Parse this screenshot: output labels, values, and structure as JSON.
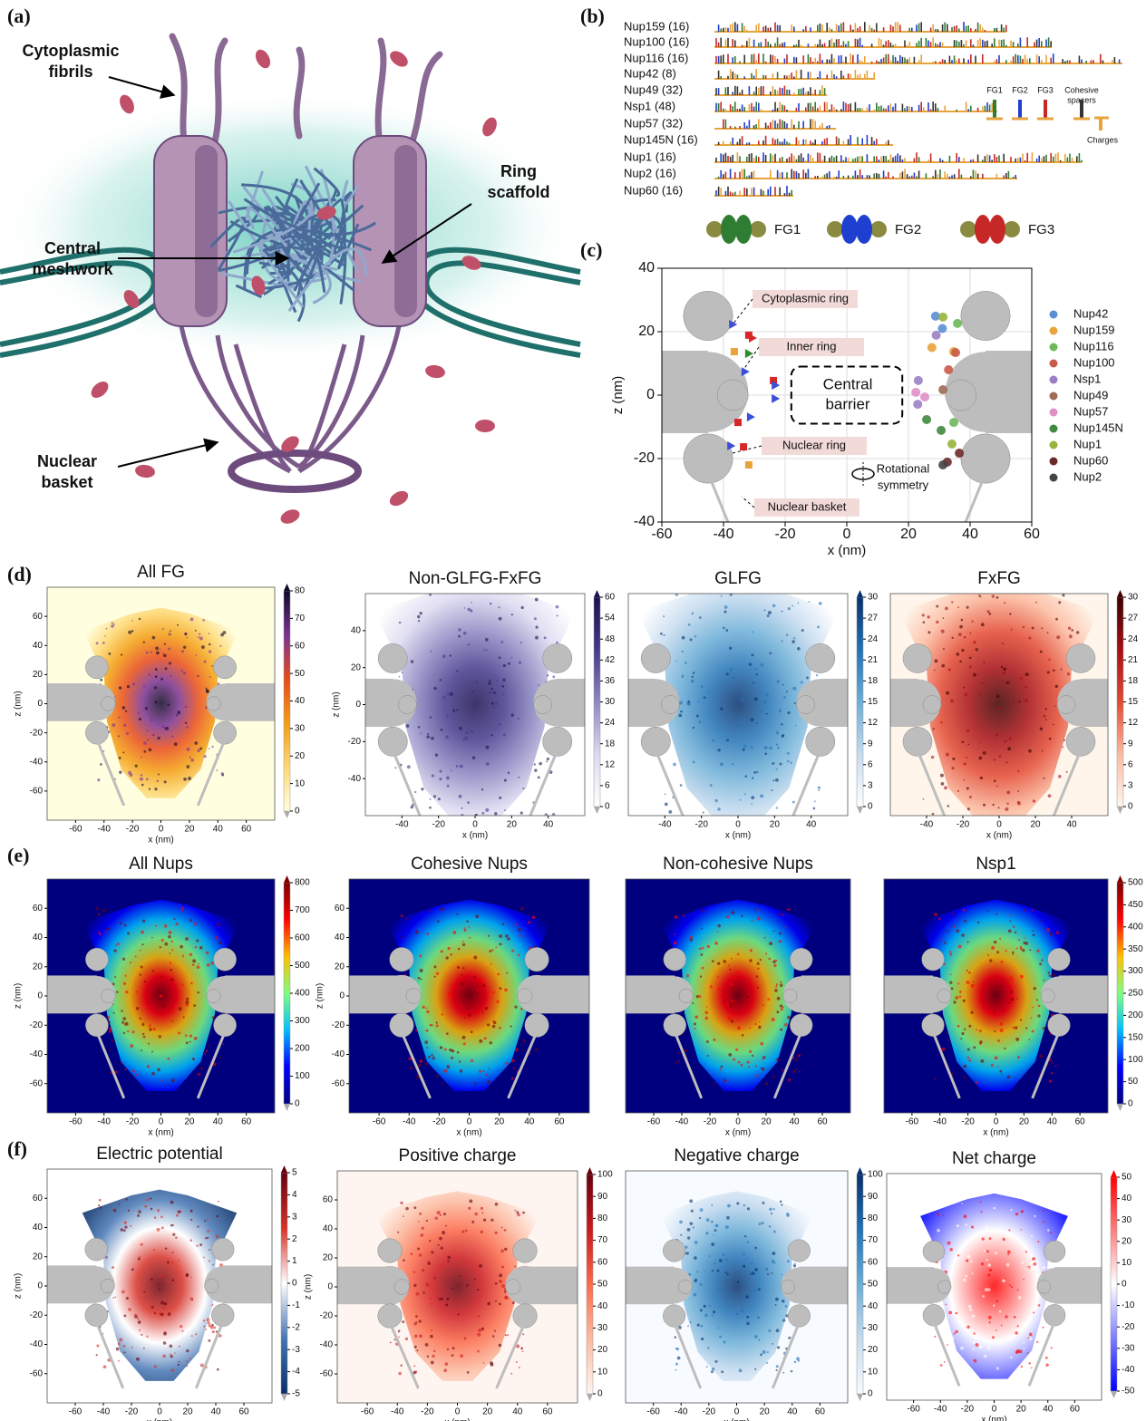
{
  "panels": {
    "a": {
      "label": "(a)",
      "annotations": [
        [
          "Cytoplasmic",
          "fibrils"
        ],
        [
          "Ring",
          "scaffold"
        ],
        [
          "Central",
          "meshwork"
        ],
        [
          "Nuclear",
          "basket"
        ]
      ]
    },
    "b": {
      "label": "(b)",
      "nups": [
        "Nup159 (16)",
        "Nup100 (16)",
        "Nup116 (16)",
        "Nup42 (8)",
        "Nup49 (32)",
        "Nsp1 (48)",
        "Nup57 (32)",
        "Nup145N (16)",
        "Nup1 (16)",
        "Nup2 (16)",
        "Nup60 (16)"
      ],
      "legend": [
        [
          "FG1"
        ],
        [
          "FG2"
        ],
        [
          "FG3"
        ],
        [
          "Cohesive",
          "spacers"
        ],
        [
          "Charges"
        ]
      ],
      "colors": [
        "#2e7d32",
        "#1f3fd1",
        "#c62828",
        "#333333",
        "#e8a33b"
      ],
      "motifs": [
        "FG1",
        "FG2",
        "FG3"
      ]
    },
    "c": {
      "label": "(c)",
      "chart": {
        "type": "scatter",
        "xlabel": "x (nm)",
        "ylabel": "z (nm)",
        "xlim": [
          -60,
          60
        ],
        "ylim": [
          -40,
          40
        ],
        "xticks": [
          -60,
          -40,
          -20,
          0,
          20,
          40,
          60
        ],
        "yticks": [
          -40,
          -20,
          0,
          20,
          40
        ],
        "grid": true,
        "annotations": [
          [
            "Cytoplasmic ring"
          ],
          [
            "Inner ring"
          ],
          [
            "Central",
            "barrier"
          ],
          [
            "Nuclear ring"
          ],
          [
            "Nuclear basket"
          ],
          [
            "Rotational",
            "symmetry"
          ]
        ],
        "series": [
          {
            "name": "Nup42",
            "color": "#5a8fd6",
            "x": [
              28.8,
              31
            ],
            "y": [
              24.9,
              21
            ]
          },
          {
            "name": "Nup159",
            "color": "#e8a33b",
            "x": [
              27.6,
              34.7
            ],
            "y": [
              15,
              13.7
            ]
          },
          {
            "name": "Nup116",
            "color": "#6cb85a",
            "x": [
              35.9,
              34.7
            ],
            "y": [
              22.6,
              -8.6
            ]
          },
          {
            "name": "Nup100",
            "color": "#c85a4a",
            "x": [
              35.3,
              33
            ],
            "y": [
              13.4,
              8
            ]
          },
          {
            "name": "Nsp1",
            "color": "#9b7fc5",
            "x": [
              23.2,
              23,
              29
            ],
            "y": [
              4.6,
              -2.9,
              18.9
            ]
          },
          {
            "name": "Nup49",
            "color": "#9e6b55",
            "x": [
              31.2
            ],
            "y": [
              1.7
            ]
          },
          {
            "name": "Nup57",
            "color": "#e08fc8",
            "x": [
              22.4,
              25.3
            ],
            "y": [
              0.9,
              -0.6
            ]
          },
          {
            "name": "Nup145N",
            "color": "#3f8a3f",
            "x": [
              30.6,
              25.9
            ],
            "y": [
              -11.1,
              -7.7
            ]
          },
          {
            "name": "Nup1",
            "color": "#99b33c",
            "x": [
              31.2,
              34.1
            ],
            "y": [
              24.6,
              -15.4
            ]
          },
          {
            "name": "Nup60",
            "color": "#6b2a2a",
            "x": [
              36.5,
              32.6
            ],
            "y": [
              -18.3,
              -21.1
            ]
          },
          {
            "name": "Nup2",
            "color": "#444444",
            "x": [
              31.2
            ],
            "y": [
              -22
            ]
          }
        ],
        "anchors": [
          {
            "marker": "square",
            "color": "#d62728",
            "x": [
              -31.8,
              -23.8,
              -35.3,
              -33.5
            ],
            "y": [
              18.9,
              4.6,
              -8.6,
              -16.3
            ]
          },
          {
            "marker": "square",
            "color": "#e8a33b",
            "x": [
              -36.5,
              -31.8
            ],
            "y": [
              13.7,
              -22
            ]
          },
          {
            "marker": "triangle",
            "color": "#3b4fd8",
            "x": [
              -37,
              -33,
              -23.2,
              -23.2,
              -31.2,
              -37.6
            ],
            "y": [
              22.3,
              7.4,
              3.1,
              -1.1,
              -6.9,
              -16
            ]
          },
          {
            "marker": "triangle",
            "color": "#d62728",
            "x": [
              -30.6
            ],
            "y": [
              18
            ]
          },
          {
            "marker": "triangle",
            "color": "#2e8b2e",
            "x": [
              -31.8
            ],
            "y": [
              13.1
            ]
          }
        ]
      }
    },
    "d": {
      "label": "(d)",
      "heatmaps": [
        {
          "title": "All FG",
          "xlabel": "x (nm)",
          "ylabel": "z (nm)",
          "xlim": [
            -80,
            80
          ],
          "ylim": [
            -80,
            80
          ],
          "xticks": [
            -60,
            -40,
            -20,
            0,
            20,
            40,
            60
          ],
          "yticks": [
            -60,
            -40,
            -20,
            0,
            20,
            40,
            60
          ],
          "clim": [
            0,
            80
          ],
          "cticks": [
            0,
            10,
            20,
            30,
            40,
            50,
            60,
            70,
            80
          ],
          "colormap": [
            "#ffffe0",
            "#fed976",
            "#f39c12",
            "#e84a1a",
            "#7b3294",
            "#10082a"
          ]
        },
        {
          "title": "Non-GLFG-FxFG",
          "xlabel": "x (nm)",
          "ylabel": "z (nm)",
          "xlim": [
            -60,
            60
          ],
          "ylim": [
            -60,
            60
          ],
          "xticks": [
            -40,
            -20,
            0,
            20,
            40
          ],
          "yticks": [
            -40,
            -20,
            0,
            20,
            40
          ],
          "clim": [
            0,
            60
          ],
          "cticks": [
            0,
            6,
            12,
            18,
            24,
            30,
            36,
            42,
            48,
            54,
            60
          ],
          "colormap": [
            "#ffffff",
            "#dcdaf0",
            "#8d88c2",
            "#433a8b",
            "#1d1050"
          ]
        },
        {
          "title": "GLFG",
          "xlabel": "x (nm)",
          "xlim": [
            -60,
            60
          ],
          "ylim": [
            -60,
            60
          ],
          "xticks": [
            -40,
            -20,
            0,
            20,
            40
          ],
          "clim": [
            0,
            30
          ],
          "cticks": [
            0,
            3,
            6,
            9,
            12,
            15,
            18,
            21,
            24,
            27,
            30
          ],
          "colormap": [
            "#ffffff",
            "#c6dbef",
            "#6baed6",
            "#2171b5",
            "#08306b"
          ]
        },
        {
          "title": "FxFG",
          "xlabel": "x (nm)",
          "xlim": [
            -60,
            60
          ],
          "ylim": [
            -60,
            60
          ],
          "xticks": [
            -40,
            -20,
            0,
            20,
            40
          ],
          "clim": [
            0,
            30
          ],
          "cticks": [
            0,
            3,
            6,
            9,
            12,
            15,
            18,
            21,
            24,
            27,
            30
          ],
          "colormap": [
            "#fff5eb",
            "#fcbba1",
            "#e34a33",
            "#a50f15",
            "#3d0000"
          ]
        }
      ]
    },
    "e": {
      "label": "(e)",
      "heatmaps": [
        {
          "title": "All Nups",
          "xlabel": "x (nm)",
          "ylabel": "z (nm)",
          "xlim": [
            -80,
            80
          ],
          "ylim": [
            -80,
            80
          ],
          "xticks": [
            -60,
            -40,
            -20,
            0,
            20,
            40,
            60
          ],
          "yticks": [
            -60,
            -40,
            -20,
            0,
            20,
            40,
            60
          ],
          "clim": [
            0,
            800
          ],
          "cticks": [
            0,
            100,
            200,
            300,
            400,
            500,
            600,
            700,
            800
          ],
          "colormap": [
            "#00007f",
            "#0000ff",
            "#00bfff",
            "#7fff7f",
            "#ffbf00",
            "#ff0000",
            "#7f0000"
          ]
        },
        {
          "title": "Cohesive Nups",
          "xlabel": "x (nm)",
          "ylabel": "z (nm)",
          "xlim": [
            -80,
            80
          ],
          "ylim": [
            -80,
            80
          ],
          "xticks": [
            -60,
            -40,
            -20,
            0,
            20,
            40,
            60
          ],
          "yticks": [
            -60,
            -40,
            -20,
            0,
            20,
            40,
            60
          ],
          "colormap": [
            "#00007f",
            "#0000ff",
            "#00bfff",
            "#7fff7f",
            "#ffbf00",
            "#ff0000",
            "#7f0000"
          ]
        },
        {
          "title": "Non-cohesive Nups",
          "xlabel": "x (nm)",
          "xlim": [
            -80,
            80
          ],
          "ylim": [
            -80,
            80
          ],
          "xticks": [
            -60,
            -40,
            -20,
            0,
            20,
            40,
            60
          ],
          "colormap": [
            "#00007f",
            "#0000ff",
            "#00bfff",
            "#7fff7f",
            "#ffbf00",
            "#ff0000",
            "#7f0000"
          ]
        },
        {
          "title": "Nsp1",
          "xlabel": "x (nm)",
          "xlim": [
            -80,
            80
          ],
          "ylim": [
            -80,
            80
          ],
          "xticks": [
            -60,
            -40,
            -20,
            0,
            20,
            40,
            60
          ],
          "clim": [
            0,
            500
          ],
          "cticks": [
            0,
            50,
            100,
            150,
            200,
            250,
            300,
            350,
            400,
            450,
            500
          ],
          "colormap": [
            "#00007f",
            "#0000ff",
            "#00bfff",
            "#7fff7f",
            "#ffbf00",
            "#ff0000",
            "#7f0000"
          ]
        }
      ]
    },
    "f": {
      "label": "(f)",
      "heatmaps": [
        {
          "title": "Electric potential",
          "xlabel": "x (nm)",
          "ylabel": "z (nm)",
          "xlim": [
            -80,
            80
          ],
          "ylim": [
            -80,
            80
          ],
          "xticks": [
            -60,
            -40,
            -20,
            0,
            20,
            40,
            60
          ],
          "yticks": [
            -60,
            -40,
            -20,
            0,
            20,
            40,
            60
          ],
          "clim": [
            -5,
            5
          ],
          "cticks": [
            -5,
            -4,
            -3,
            -2,
            -1,
            0,
            1,
            2,
            3,
            4,
            5
          ],
          "colormap": [
            "#08306b",
            "#4575b4",
            "#ffffff",
            "#d73027",
            "#67000d"
          ]
        },
        {
          "title": "Positive charge",
          "xlabel": "x (nm)",
          "ylabel": "z (nm)",
          "xlim": [
            -80,
            80
          ],
          "ylim": [
            -80,
            80
          ],
          "xticks": [
            -60,
            -40,
            -20,
            0,
            20,
            40,
            60
          ],
          "yticks": [
            -60,
            -40,
            -20,
            0,
            20,
            40,
            60
          ],
          "clim": [
            0,
            100
          ],
          "cticks": [
            0,
            10,
            20,
            30,
            40,
            50,
            60,
            70,
            80,
            90,
            100
          ],
          "colormap": [
            "#fff5f0",
            "#fcbba1",
            "#fb6a4a",
            "#cb181d",
            "#67000d"
          ]
        },
        {
          "title": "Negative charge",
          "xlabel": "x (nm)",
          "xlim": [
            -80,
            80
          ],
          "ylim": [
            -80,
            80
          ],
          "xticks": [
            -60,
            -40,
            -20,
            0,
            20,
            40,
            60
          ],
          "clim": [
            0,
            100
          ],
          "cticks": [
            0,
            10,
            20,
            30,
            40,
            50,
            60,
            70,
            80,
            90,
            100
          ],
          "colormap": [
            "#f7fbff",
            "#c6dbef",
            "#6baed6",
            "#2171b5",
            "#08306b"
          ]
        },
        {
          "title": "Net charge",
          "xlabel": "x (nm)",
          "xlim": [
            -80,
            80
          ],
          "ylim": [
            -80,
            80
          ],
          "xticks": [
            -60,
            -40,
            -20,
            0,
            20,
            40,
            60
          ],
          "clim": [
            -50,
            50
          ],
          "cticks": [
            -50,
            -40,
            -30,
            -20,
            -10,
            0,
            10,
            20,
            30,
            40,
            50
          ],
          "colormap": [
            "#0000ff",
            "#ffffff",
            "#ff0000"
          ]
        }
      ]
    }
  }
}
